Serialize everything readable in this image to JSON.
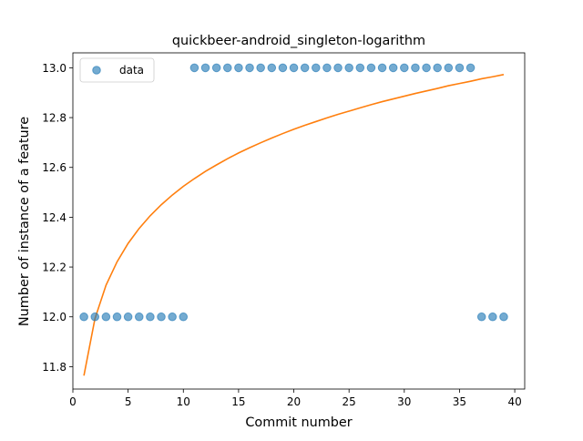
{
  "chart_data": {
    "type": "scatter",
    "title": "quickbeer-android_singleton-logarithm",
    "xlabel": "Commit number",
    "ylabel": "Number of instance of a feature",
    "xlim": [
      0,
      40.9
    ],
    "ylim": [
      11.71,
      13.06
    ],
    "xticks": [
      0,
      5,
      10,
      15,
      20,
      25,
      30,
      35,
      40
    ],
    "yticks": [
      11.8,
      12.0,
      12.2,
      12.4,
      12.6,
      12.8,
      13.0
    ],
    "ytick_labels": [
      "11.8",
      "12.0",
      "12.2",
      "12.4",
      "12.6",
      "12.8",
      "13.0"
    ],
    "legend": {
      "position": "top-left",
      "entries": [
        "data"
      ]
    },
    "grid": false,
    "colors": {
      "scatter": "#1f77b4",
      "fit": "#ff7f0e"
    },
    "series": [
      {
        "name": "data",
        "kind": "scatter",
        "x": [
          1,
          2,
          3,
          4,
          5,
          6,
          7,
          8,
          9,
          10,
          11,
          12,
          13,
          14,
          15,
          16,
          17,
          18,
          19,
          20,
          21,
          22,
          23,
          24,
          25,
          26,
          27,
          28,
          29,
          30,
          31,
          32,
          33,
          34,
          35,
          36,
          37,
          38,
          39
        ],
        "y": [
          12,
          12,
          12,
          12,
          12,
          12,
          12,
          12,
          12,
          12,
          13,
          13,
          13,
          13,
          13,
          13,
          13,
          13,
          13,
          13,
          13,
          13,
          13,
          13,
          13,
          13,
          13,
          13,
          13,
          13,
          13,
          13,
          13,
          13,
          13,
          13,
          12,
          12,
          12
        ]
      },
      {
        "kind": "line",
        "fit": {
          "a": 11.764,
          "b": 0.33
        },
        "x": [
          1,
          2,
          3,
          4,
          5,
          6,
          7,
          8,
          9,
          10,
          11,
          12,
          13,
          14,
          15,
          16,
          17,
          18,
          19,
          20,
          21,
          22,
          23,
          24,
          25,
          26,
          27,
          28,
          29,
          30,
          31,
          32,
          33,
          34,
          35,
          36,
          37,
          38,
          39
        ],
        "y": [
          11.764,
          11.993,
          12.127,
          12.221,
          12.295,
          12.355,
          12.406,
          12.45,
          12.489,
          12.524,
          12.555,
          12.584,
          12.61,
          12.635,
          12.658,
          12.679,
          12.699,
          12.718,
          12.736,
          12.753,
          12.769,
          12.784,
          12.799,
          12.813,
          12.826,
          12.839,
          12.852,
          12.864,
          12.875,
          12.886,
          12.897,
          12.907,
          12.917,
          12.928,
          12.937,
          12.946,
          12.956,
          12.964,
          12.973
        ]
      }
    ]
  }
}
